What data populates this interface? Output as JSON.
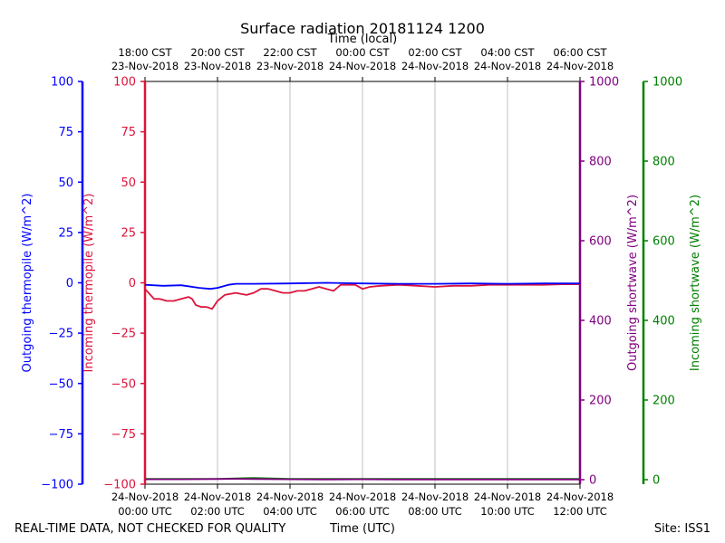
{
  "chart_data": {
    "type": "line",
    "title": "Surface radiation 20181124 1200",
    "top_axis_label": "Time (local)",
    "bottom_axis_label": "Time (UTC)",
    "footer_left": "REAL-TIME DATA, NOT CHECKED FOR QUALITY",
    "footer_right": "Site: ISS1",
    "x_ticks": [
      {
        "hour": 0,
        "utc1": "24-Nov-2018",
        "utc2": "00:00 UTC",
        "local1": "18:00 CST",
        "local2": "23-Nov-2018"
      },
      {
        "hour": 2,
        "utc1": "24-Nov-2018",
        "utc2": "02:00 UTC",
        "local1": "20:00 CST",
        "local2": "23-Nov-2018"
      },
      {
        "hour": 4,
        "utc1": "24-Nov-2018",
        "utc2": "04:00 UTC",
        "local1": "22:00 CST",
        "local2": "23-Nov-2018"
      },
      {
        "hour": 6,
        "utc1": "24-Nov-2018",
        "utc2": "06:00 UTC",
        "local1": "00:00 CST",
        "local2": "24-Nov-2018"
      },
      {
        "hour": 8,
        "utc1": "24-Nov-2018",
        "utc2": "08:00 UTC",
        "local1": "02:00 CST",
        "local2": "24-Nov-2018"
      },
      {
        "hour": 10,
        "utc1": "24-Nov-2018",
        "utc2": "10:00 UTC",
        "local1": "04:00 CST",
        "local2": "24-Nov-2018"
      },
      {
        "hour": 12,
        "utc1": "24-Nov-2018",
        "utc2": "12:00 UTC",
        "local1": "06:00 CST",
        "local2": "24-Nov-2018"
      }
    ],
    "xlim": [
      0,
      12
    ],
    "grid": true,
    "axes": [
      {
        "id": "outgoing-thermopile",
        "label": "Outgoing thermopile (W/m^2)",
        "color": "#0000ff",
        "ylim": [
          -100,
          100
        ],
        "ticks": [
          "100",
          "75",
          "50",
          "25",
          "0",
          "−25",
          "−50",
          "−75",
          "−100"
        ],
        "tick_values": [
          100,
          75,
          50,
          25,
          0,
          -25,
          -50,
          -75,
          -100
        ]
      },
      {
        "id": "incoming-thermopile",
        "label": "Incoming thermopile (W/m^2)",
        "color": "#dc143c",
        "ylim": [
          -100,
          100
        ],
        "ticks": [
          "100",
          "75",
          "50",
          "25",
          "0",
          "−25",
          "−50",
          "−75",
          "−100"
        ],
        "tick_values": [
          100,
          75,
          50,
          25,
          0,
          -25,
          -50,
          -75,
          -100
        ]
      },
      {
        "id": "outgoing-shortwave",
        "label": "Outgoing shortwave (W/m^2)",
        "color": "#800080",
        "ylim": [
          0,
          1000
        ],
        "ticks": [
          "1000",
          "800",
          "600",
          "400",
          "200",
          "0"
        ],
        "tick_values": [
          1000,
          800,
          600,
          400,
          200,
          0
        ]
      },
      {
        "id": "incoming-shortwave",
        "label": "Incoming shortwave (W/m^2)",
        "color": "#008000",
        "ylim": [
          0,
          1000
        ],
        "ticks": [
          "1000",
          "800",
          "600",
          "400",
          "200",
          "0"
        ],
        "tick_values": [
          1000,
          800,
          600,
          400,
          200,
          0
        ]
      }
    ],
    "series": [
      {
        "axis": "incoming-thermopile",
        "color": "#dc143c",
        "x": [
          0,
          0.1,
          0.25,
          0.4,
          0.6,
          0.8,
          1.0,
          1.2,
          1.3,
          1.4,
          1.55,
          1.7,
          1.85,
          2.0,
          2.2,
          2.5,
          2.8,
          3.0,
          3.2,
          3.4,
          3.6,
          3.8,
          4.0,
          4.2,
          4.4,
          4.6,
          4.8,
          5.0,
          5.2,
          5.4,
          5.6,
          5.8,
          6.0,
          6.2,
          6.5,
          7.0,
          7.5,
          8.0,
          8.5,
          9.0,
          9.5,
          10.0,
          10.5,
          11.0,
          11.5,
          12.0
        ],
        "y": [
          -3,
          -5,
          -8,
          -8,
          -9,
          -9,
          -8,
          -7,
          -8,
          -11,
          -12,
          -12,
          -13,
          -9,
          -6,
          -5,
          -6,
          -5,
          -3,
          -3,
          -4,
          -5,
          -5,
          -4,
          -4,
          -3,
          -2,
          -3,
          -4,
          -1,
          -1,
          -1,
          -3,
          -2,
          -1.5,
          -1,
          -1.5,
          -2,
          -1.5,
          -1.5,
          -1,
          -1,
          -1,
          -1,
          -0.7,
          -0.7
        ]
      },
      {
        "axis": "outgoing-thermopile",
        "color": "#0000ff",
        "x": [
          0,
          0.5,
          1.0,
          1.5,
          1.8,
          2.0,
          2.3,
          2.5,
          3.0,
          4.0,
          5.0,
          6.0,
          7.0,
          8.0,
          9.0,
          10.0,
          11.0,
          12.0
        ],
        "y": [
          -1,
          -1.5,
          -1.2,
          -2.5,
          -3,
          -2.5,
          -1,
          -0.5,
          -0.5,
          -0.3,
          0,
          -0.3,
          -0.5,
          -0.5,
          -0.3,
          -0.5,
          -0.3,
          -0.3
        ]
      },
      {
        "axis": "incoming-shortwave",
        "color": "#008000",
        "x": [
          0,
          2,
          3,
          4,
          6,
          8,
          10,
          12
        ],
        "y": [
          2,
          2,
          4,
          2,
          2,
          2,
          2,
          2
        ]
      },
      {
        "axis": "outgoing-shortwave",
        "color": "#800080",
        "x": [
          0,
          1,
          2,
          2.5,
          3,
          4,
          5,
          6,
          7,
          8,
          9,
          10,
          11,
          12
        ],
        "y": [
          1,
          1,
          1.5,
          2,
          1.5,
          1,
          0.5,
          1,
          0.5,
          0.5,
          0.5,
          0.5,
          0.5,
          0.5
        ]
      }
    ]
  }
}
